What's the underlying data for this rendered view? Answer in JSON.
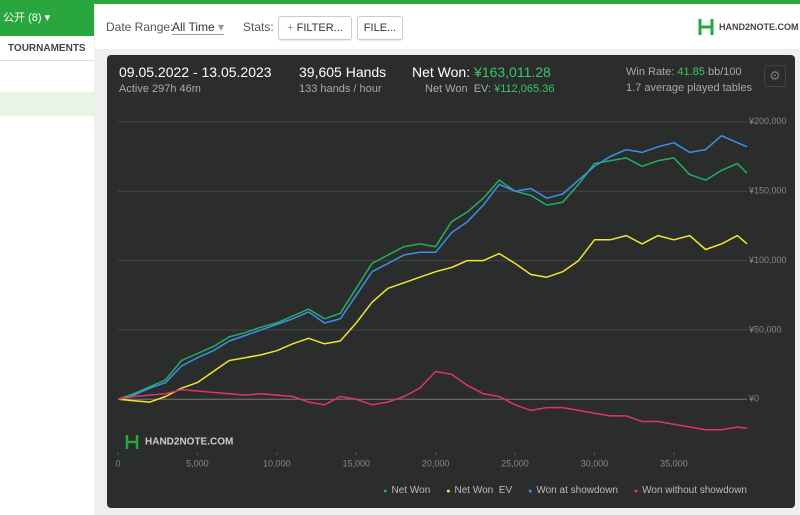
{
  "sidebar": {
    "dropdown": "公开 (8)",
    "tab": "TOURNAMENTS"
  },
  "toolbar": {
    "date_range_label": "Date Range:",
    "date_range_value": "All Time",
    "stats_label": "Stats:",
    "filter_button": "FILTER...",
    "file_button": "FILE...",
    "logo": "HAND2NOTE.COM"
  },
  "stats": {
    "period": "09.05.2022 - 13.05.2023",
    "active": "Active 297h 46m",
    "hands": "39,605 Hands",
    "hands_per_hour": "133 hands / hour",
    "net_won_label": "Net Won:",
    "net_won_value": "¥163,011.28",
    "net_won_ev_label": "Net Won  EV:",
    "net_won_ev_value": "¥112,065.36",
    "win_rate_label": "Win Rate:",
    "win_rate_value": "41.85",
    "win_rate_unit": "bb/100",
    "tables": "1.7 average played tables"
  },
  "chart_data": {
    "type": "line",
    "watermark": "HAND2NOTE.COM",
    "x": [
      0,
      1000,
      2000,
      3000,
      4000,
      5000,
      6000,
      7000,
      8000,
      9000,
      10000,
      11000,
      12000,
      13000,
      14000,
      15000,
      16000,
      17000,
      18000,
      19000,
      20000,
      21000,
      22000,
      23000,
      24000,
      25000,
      26000,
      27000,
      28000,
      29000,
      30000,
      31000,
      32000,
      33000,
      34000,
      35000,
      36000,
      37000,
      38000,
      39000,
      39605
    ],
    "xlim": [
      0,
      39605
    ],
    "xticks": [
      0,
      {
        "value": 5000,
        "label": "5,000"
      },
      {
        "value": 10000,
        "label": "10,000"
      },
      {
        "value": 15000,
        "label": "15,000"
      },
      {
        "value": 20000,
        "label": "20,000"
      },
      {
        "value": 25000,
        "label": "25,000"
      },
      {
        "value": 30000,
        "label": "30,000"
      },
      {
        "value": 35000,
        "label": "35,000"
      }
    ],
    "ylim": [
      -38000,
      210000
    ],
    "yticks": [
      {
        "value": 0,
        "label": "¥0"
      },
      {
        "value": 50000,
        "label": "¥50,000"
      },
      {
        "value": 100000,
        "label": "¥100,000"
      },
      {
        "value": 150000,
        "label": "¥150,000"
      },
      {
        "value": 200000,
        "label": "¥200,000"
      }
    ],
    "grid": true,
    "series": [
      {
        "name": "Net Won",
        "color": "#22b060",
        "values": [
          0,
          4000,
          9000,
          14000,
          28000,
          33000,
          38000,
          45000,
          48000,
          52000,
          55000,
          60000,
          65000,
          58000,
          62000,
          80000,
          98000,
          104000,
          110000,
          112000,
          110000,
          128000,
          135000,
          145000,
          158000,
          150000,
          147000,
          140000,
          142000,
          155000,
          170000,
          172000,
          174000,
          168000,
          172000,
          174000,
          162000,
          158000,
          165000,
          170000,
          163011
        ]
      },
      {
        "name": "Net Won  EV",
        "color": "#f2e62c",
        "values": [
          0,
          -1000,
          -2000,
          2000,
          8000,
          12000,
          20000,
          28000,
          30000,
          32000,
          35000,
          40000,
          44000,
          40000,
          42000,
          55000,
          70000,
          80000,
          84000,
          88000,
          92000,
          95000,
          100000,
          100000,
          105000,
          98000,
          90000,
          88000,
          92000,
          100000,
          115000,
          115000,
          118000,
          112000,
          118000,
          115000,
          118000,
          108000,
          112000,
          118000,
          112065
        ]
      },
      {
        "name": "Won at showdown",
        "color": "#3d8fe8",
        "values": [
          0,
          3000,
          8000,
          12000,
          24000,
          30000,
          35000,
          42000,
          46000,
          50000,
          54000,
          58000,
          63000,
          55000,
          58000,
          75000,
          92000,
          98000,
          104000,
          106000,
          106000,
          120000,
          128000,
          140000,
          155000,
          150000,
          152000,
          145000,
          148000,
          158000,
          168000,
          175000,
          180000,
          178000,
          182000,
          185000,
          178000,
          180000,
          190000,
          185000,
          182000
        ]
      },
      {
        "name": "Won without showdown",
        "color": "#e0336c",
        "values": [
          0,
          2000,
          3000,
          4000,
          7000,
          6000,
          5000,
          4000,
          3000,
          4000,
          3000,
          2000,
          -2000,
          -4000,
          2000,
          0,
          -4000,
          -2000,
          2000,
          8000,
          20000,
          18000,
          10000,
          4000,
          2000,
          -4000,
          -8000,
          -6000,
          -6000,
          -8000,
          -10000,
          -12000,
          -12000,
          -16000,
          -16000,
          -18000,
          -20000,
          -22000,
          -22000,
          -20000,
          -21000
        ]
      }
    ]
  }
}
